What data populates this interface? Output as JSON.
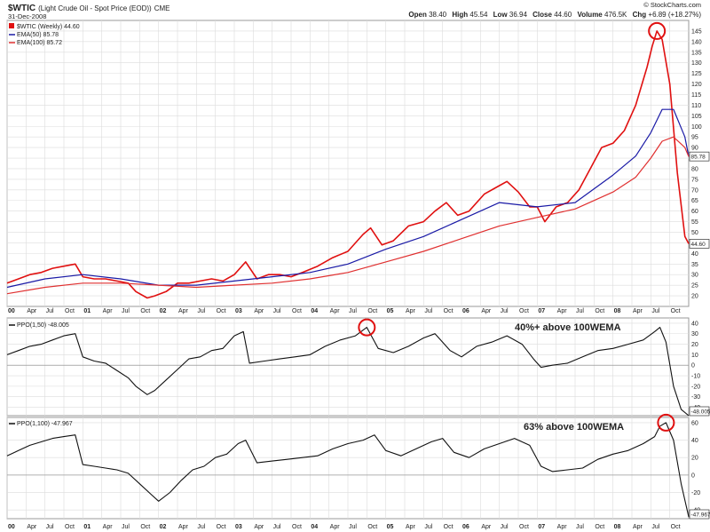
{
  "header": {
    "symbol": "$WTIC",
    "description": "(Light Crude Oil - Spot Price (EOD))",
    "exchange": "CME",
    "date": "31-Dec-2008",
    "open_label": "Open",
    "open": "38.40",
    "high_label": "High",
    "high": "45.54",
    "low_label": "Low",
    "low": "36.94",
    "close_label": "Close",
    "close": "44.60",
    "volume_label": "Volume",
    "volume": "476.5K",
    "chg_label": "Chg",
    "chg": "+6.89 (+18.27%)",
    "source": "© StockCharts.com"
  },
  "colors": {
    "price": "#e01010",
    "ema50": "#1a1aa6",
    "ema100": "#e03030",
    "ppo": "#111111",
    "grid": "#dcdcdc",
    "annotation": "#e01010"
  },
  "legend": {
    "price": "$WTIC (Weekly) 44.60",
    "ema50": "EMA(50) 85.78",
    "ema100": "EMA(100) 85.72",
    "ppo50": "PPO(1,50) -48.005",
    "ppo100": "PPO(1,100) -47.967"
  },
  "annotations": {
    "ppo50_note": "40%+ above 100WEMA",
    "ppo100_note": "63% above 100WEMA"
  },
  "tags": {
    "ema": "85.78",
    "price": "44.60",
    "ppo50": "-48.005",
    "ppo100": "-47.967"
  },
  "x_labels": [
    "00",
    "Apr",
    "Jul",
    "Oct",
    "01",
    "Apr",
    "Jul",
    "Oct",
    "02",
    "Apr",
    "Jul",
    "Oct",
    "03",
    "Apr",
    "Jul",
    "Oct",
    "04",
    "Apr",
    "Jul",
    "Oct",
    "05",
    "Apr",
    "Jul",
    "Oct",
    "06",
    "Apr",
    "Jul",
    "Oct",
    "07",
    "Apr",
    "Jul",
    "Oct",
    "08",
    "Apr",
    "Jul",
    "Oct"
  ],
  "chart_data": [
    {
      "type": "line",
      "title": "$WTIC Light Crude Oil - Spot Price (EOD), Weekly",
      "x_start": 2000.0,
      "x_end": 2009.0,
      "ylim": [
        15,
        150
      ],
      "yticks": [
        20,
        25,
        30,
        35,
        40,
        45,
        50,
        55,
        60,
        65,
        70,
        75,
        80,
        85,
        90,
        95,
        100,
        105,
        110,
        115,
        120,
        125,
        130,
        135,
        140,
        145
      ],
      "series": [
        {
          "name": "$WTIC (Weekly)",
          "color": "price",
          "x": [
            2000.0,
            2000.15,
            2000.3,
            2000.45,
            2000.6,
            2000.75,
            2000.9,
            2001.0,
            2001.15,
            2001.3,
            2001.45,
            2001.6,
            2001.7,
            2001.85,
            2001.95,
            2002.1,
            2002.25,
            2002.4,
            2002.55,
            2002.7,
            2002.85,
            2003.0,
            2003.15,
            2003.3,
            2003.45,
            2003.6,
            2003.75,
            2003.9,
            2004.1,
            2004.3,
            2004.5,
            2004.7,
            2004.8,
            2004.95,
            2005.1,
            2005.3,
            2005.5,
            2005.65,
            2005.8,
            2005.95,
            2006.1,
            2006.3,
            2006.5,
            2006.6,
            2006.75,
            2006.9,
            2007.0,
            2007.1,
            2007.25,
            2007.4,
            2007.55,
            2007.7,
            2007.85,
            2008.0,
            2008.15,
            2008.3,
            2008.45,
            2008.52,
            2008.58,
            2008.65,
            2008.75,
            2008.85,
            2008.95,
            2009.0
          ],
          "y": [
            26,
            28,
            30,
            31,
            33,
            34,
            35,
            29,
            28,
            28,
            27,
            26,
            22,
            19,
            20,
            22,
            26,
            26,
            27,
            28,
            27,
            30,
            36,
            28,
            30,
            30,
            29,
            31,
            34,
            38,
            41,
            49,
            52,
            44,
            46,
            53,
            55,
            60,
            64,
            58,
            60,
            68,
            72,
            74,
            69,
            62,
            62,
            55,
            62,
            64,
            70,
            80,
            90,
            92,
            98,
            110,
            128,
            138,
            145,
            141,
            120,
            78,
            48,
            44.6
          ]
        },
        {
          "name": "EMA(50)",
          "color": "ema50",
          "x": [
            2000.0,
            2000.5,
            2001.0,
            2001.5,
            2002.0,
            2002.5,
            2003.0,
            2003.5,
            2004.0,
            2004.5,
            2005.0,
            2005.5,
            2006.0,
            2006.5,
            2007.0,
            2007.5,
            2008.0,
            2008.3,
            2008.5,
            2008.65,
            2008.8,
            2008.95,
            2009.0
          ],
          "y": [
            24,
            28,
            30,
            28,
            25,
            25,
            27,
            29,
            31,
            35,
            42,
            48,
            56,
            64,
            62,
            64,
            77,
            86,
            97,
            108,
            108,
            95,
            85.78
          ]
        },
        {
          "name": "EMA(100)",
          "color": "ema100",
          "x": [
            2000.0,
            2000.5,
            2001.0,
            2001.5,
            2002.0,
            2002.5,
            2003.0,
            2003.5,
            2004.0,
            2004.5,
            2005.0,
            2005.5,
            2006.0,
            2006.5,
            2007.0,
            2007.5,
            2008.0,
            2008.3,
            2008.5,
            2008.65,
            2008.8,
            2008.95,
            2009.0
          ],
          "y": [
            21,
            24,
            26,
            26,
            25,
            24,
            25,
            26,
            28,
            31,
            36,
            41,
            47,
            53,
            57,
            61,
            69,
            76,
            85,
            93,
            95,
            90,
            85.72
          ]
        }
      ]
    },
    {
      "type": "line",
      "title": "PPO(1,50)",
      "x_start": 2000.0,
      "x_end": 2009.0,
      "ylim": [
        -48,
        45
      ],
      "yticks": [
        -40,
        -30,
        -20,
        -10,
        0,
        10,
        20,
        30,
        40
      ],
      "series": [
        {
          "name": "PPO(1,50)",
          "color": "ppo",
          "x": [
            2000.0,
            2000.15,
            2000.3,
            2000.45,
            2000.6,
            2000.75,
            2000.9,
            2001.0,
            2001.15,
            2001.3,
            2001.45,
            2001.6,
            2001.7,
            2001.85,
            2001.95,
            2002.1,
            2002.25,
            2002.4,
            2002.55,
            2002.7,
            2002.85,
            2003.0,
            2003.12,
            2003.2,
            2003.4,
            2003.6,
            2003.8,
            2004.0,
            2004.2,
            2004.4,
            2004.6,
            2004.75,
            2004.9,
            2005.1,
            2005.3,
            2005.5,
            2005.65,
            2005.85,
            2006.0,
            2006.2,
            2006.4,
            2006.6,
            2006.8,
            2006.95,
            2007.05,
            2007.2,
            2007.4,
            2007.6,
            2007.8,
            2008.0,
            2008.2,
            2008.4,
            2008.55,
            2008.62,
            2008.7,
            2008.8,
            2008.9,
            2009.0
          ],
          "y": [
            10,
            14,
            18,
            20,
            24,
            28,
            30,
            8,
            4,
            2,
            -5,
            -12,
            -20,
            -28,
            -24,
            -14,
            -4,
            6,
            8,
            14,
            16,
            28,
            32,
            2,
            4,
            6,
            8,
            10,
            18,
            24,
            28,
            36,
            16,
            12,
            18,
            26,
            30,
            14,
            8,
            18,
            22,
            28,
            20,
            6,
            -2,
            0,
            2,
            8,
            14,
            16,
            20,
            24,
            32,
            36,
            22,
            -20,
            -42,
            -48
          ]
        }
      ]
    },
    {
      "type": "line",
      "title": "PPO(1,100)",
      "x_start": 2000.0,
      "x_end": 2009.0,
      "ylim": [
        -50,
        66
      ],
      "yticks": [
        -40,
        -20,
        0,
        20,
        40,
        60
      ],
      "series": [
        {
          "name": "PPO(1,100)",
          "color": "ppo",
          "x": [
            2000.0,
            2000.15,
            2000.3,
            2000.45,
            2000.6,
            2000.75,
            2000.9,
            2001.0,
            2001.15,
            2001.3,
            2001.45,
            2001.6,
            2001.75,
            2001.9,
            2002.0,
            2002.15,
            2002.3,
            2002.45,
            2002.6,
            2002.75,
            2002.9,
            2003.05,
            2003.15,
            2003.3,
            2003.5,
            2003.7,
            2003.9,
            2004.1,
            2004.3,
            2004.5,
            2004.7,
            2004.85,
            2005.0,
            2005.2,
            2005.4,
            2005.6,
            2005.75,
            2005.9,
            2006.1,
            2006.3,
            2006.5,
            2006.7,
            2006.9,
            2007.05,
            2007.2,
            2007.4,
            2007.6,
            2007.8,
            2008.0,
            2008.2,
            2008.4,
            2008.55,
            2008.62,
            2008.7,
            2008.8,
            2008.9,
            2009.0
          ],
          "y": [
            22,
            28,
            34,
            38,
            42,
            44,
            46,
            12,
            10,
            8,
            6,
            2,
            -10,
            -22,
            -30,
            -20,
            -6,
            6,
            10,
            20,
            24,
            36,
            40,
            14,
            16,
            18,
            20,
            22,
            30,
            36,
            40,
            46,
            28,
            22,
            30,
            38,
            42,
            26,
            20,
            30,
            36,
            42,
            34,
            10,
            4,
            6,
            8,
            18,
            24,
            28,
            36,
            44,
            56,
            60,
            40,
            -10,
            -47.967
          ]
        }
      ]
    }
  ]
}
